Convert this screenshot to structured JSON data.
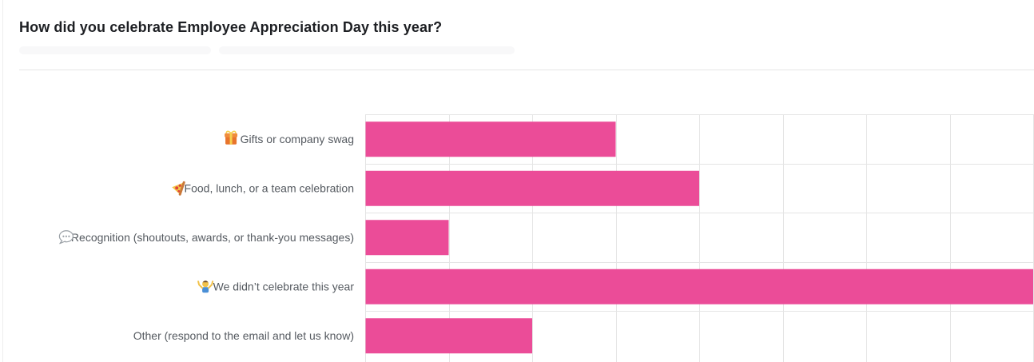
{
  "header": {
    "title": "How did you celebrate Employee Appreciation Day this year?"
  },
  "colors": {
    "bar": "#eb4c98",
    "grid": "#e5e5e5",
    "label": "#555a60"
  },
  "chart_data": {
    "type": "bar",
    "orientation": "horizontal",
    "title": "How did you celebrate Employee Appreciation Day this year?",
    "xlabel": "",
    "ylabel": "",
    "grid": true,
    "legend": "none",
    "xlim": [
      0,
      8
    ],
    "categories": [
      "Gifts or company swag",
      "Food, lunch, or a team celebration",
      "Recognition (shoutouts, awards, or thank-you messages)",
      "We didn’t celebrate this year",
      "Other (respond to the email and let us know)"
    ],
    "category_icons": [
      "gift-icon",
      "pizza-icon",
      "speech-bubble-icon",
      "person-shrugging-icon",
      ""
    ],
    "values": [
      3,
      4,
      1,
      8,
      2
    ]
  }
}
